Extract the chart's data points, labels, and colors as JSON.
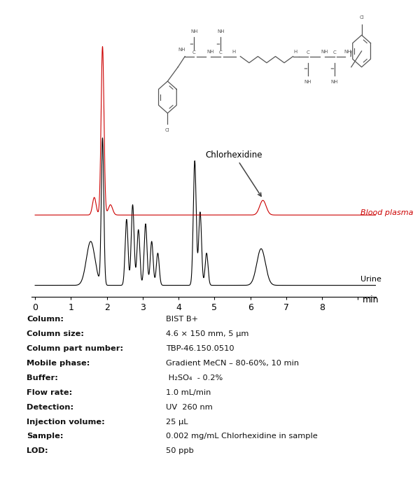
{
  "bg_color": "#ffffff",
  "table_bg_color": "#fde8e4",
  "table_labels": [
    "Column",
    "Column size:",
    "Column part number:",
    "Mobile phase:",
    "Buffer:",
    "Flow rate:",
    "Detection:",
    "Injection volume",
    "Sample:",
    "LOD:"
  ],
  "table_values_plain": [
    "BIST B+",
    "4.6 × 150 mm, 5 μm",
    "TBP-46.150.0510",
    "Gradient MeCN – 80-60%, 10 min",
    " H₂SO₄  - 0.2%",
    "1.0 mL/min",
    "UV  260 nm",
    "25 μL",
    "0.002 mg/mL Chlorhexidine in sample",
    "50 ppb"
  ],
  "xmin": 0,
  "xmax": 9,
  "xlabel": "min",
  "blood_plasma_label": "Blood plasma",
  "urine_label": "Urine",
  "chlorhexidine_label": "Chlorhexidine",
  "blood_plasma_color": "#cc0000",
  "urine_color": "#000000"
}
